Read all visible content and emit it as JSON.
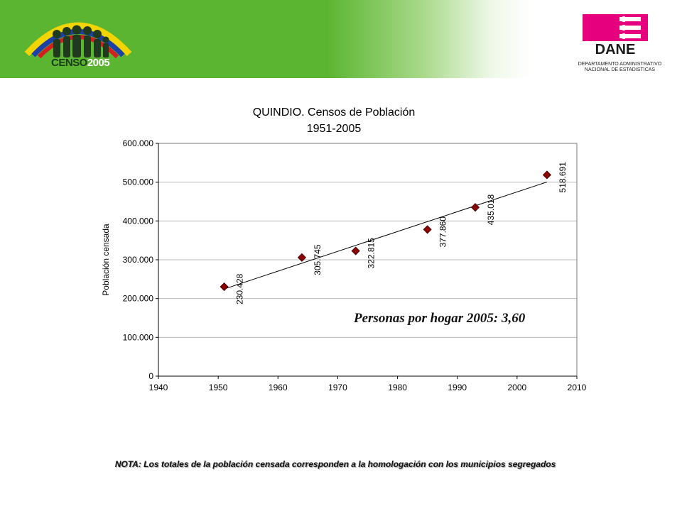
{
  "header": {
    "censo_logo_text": "CENSO",
    "censo_logo_year": "2005",
    "dane_logo_text": "DANE",
    "dane_subtitle_line1": "DEPARTAMENTO ADMINISTRATIVO",
    "dane_subtitle_line2": "NACIONAL DE ESTADISTICAS"
  },
  "chart_data": {
    "type": "scatter",
    "title": "QUINDIO. Censos de Población",
    "subtitle": "1951-2005",
    "xlabel": "",
    "ylabel": "Población censada",
    "xlim": [
      1940,
      2010
    ],
    "ylim": [
      0,
      600000
    ],
    "x_ticks": [
      "1940",
      "1950",
      "1960",
      "1970",
      "1980",
      "1990",
      "2000",
      "2010"
    ],
    "y_ticks": [
      "0",
      "100.000",
      "200.000",
      "300.000",
      "400.000",
      "500.000",
      "600.000"
    ],
    "grid": true,
    "trendline": "linear",
    "points": [
      {
        "x": 1951,
        "y": 230428,
        "label": "230.428"
      },
      {
        "x": 1964,
        "y": 305745,
        "label": "305.745"
      },
      {
        "x": 1973,
        "y": 322815,
        "label": "322.815"
      },
      {
        "x": 1985,
        "y": 377860,
        "label": "377.860"
      },
      {
        "x": 1993,
        "y": 435018,
        "label": "435.018"
      },
      {
        "x": 2005,
        "y": 518691,
        "label": "518.691"
      }
    ],
    "marker_color": "#8b0000"
  },
  "annotation": "Personas por hogar 2005: 3,60",
  "note": "NOTA: Los totales de la población censada corresponden a la homologación con los municipios segregados"
}
